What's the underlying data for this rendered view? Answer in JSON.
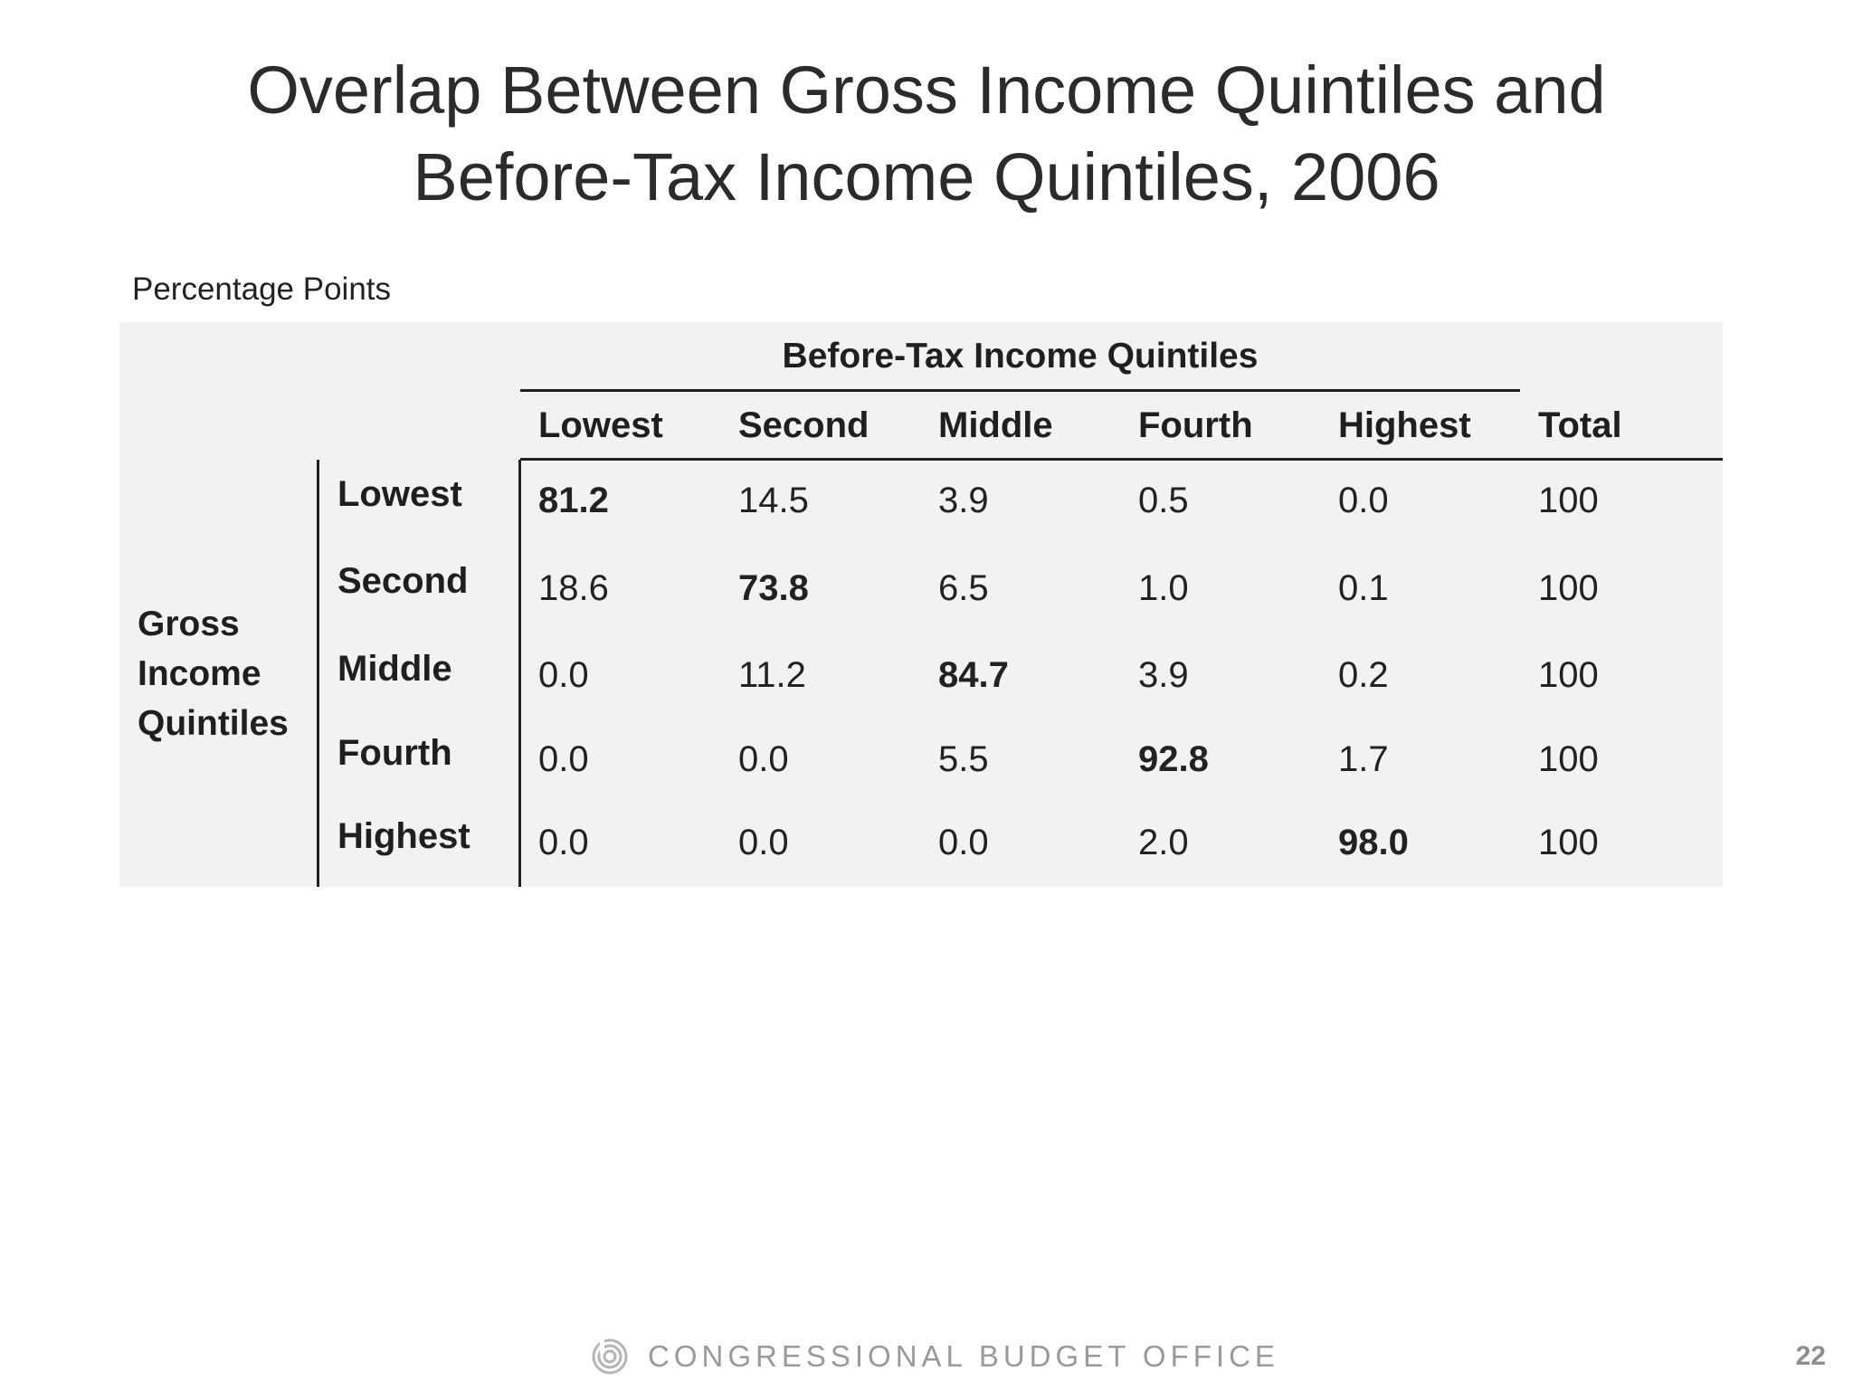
{
  "title": {
    "line1": "Overlap Between Gross Income Quintiles and",
    "line2": "Before-Tax Income Quintiles, 2006"
  },
  "subtitle": "Percentage Points",
  "table": {
    "column_group_label": "Before-Tax Income Quintiles",
    "row_group_label": [
      "Gross",
      "Income",
      "Quintiles"
    ],
    "columns": [
      "Lowest",
      "Second",
      "Middle",
      "Fourth",
      "Highest",
      "Total"
    ],
    "rows": [
      {
        "label": "Lowest",
        "values": [
          "81.2",
          "14.5",
          "3.9",
          "0.5",
          "0.0",
          "100"
        ]
      },
      {
        "label": "Second",
        "values": [
          "18.6",
          "73.8",
          "6.5",
          "1.0",
          "0.1",
          "100"
        ]
      },
      {
        "label": "Middle",
        "values": [
          "0.0",
          "11.2",
          "84.7",
          "3.9",
          "0.2",
          "100"
        ]
      },
      {
        "label": "Fourth",
        "values": [
          "0.0",
          "0.0",
          "5.5",
          "92.8",
          "1.7",
          "100"
        ]
      },
      {
        "label": "Highest",
        "values": [
          "0.0",
          "0.0",
          "0.0",
          "2.0",
          "98.0",
          "100"
        ]
      }
    ]
  },
  "footer": {
    "organization": "CONGRESSIONAL BUDGET OFFICE",
    "logo_icon": "cbo-logo-icon",
    "page_number": "22"
  }
}
